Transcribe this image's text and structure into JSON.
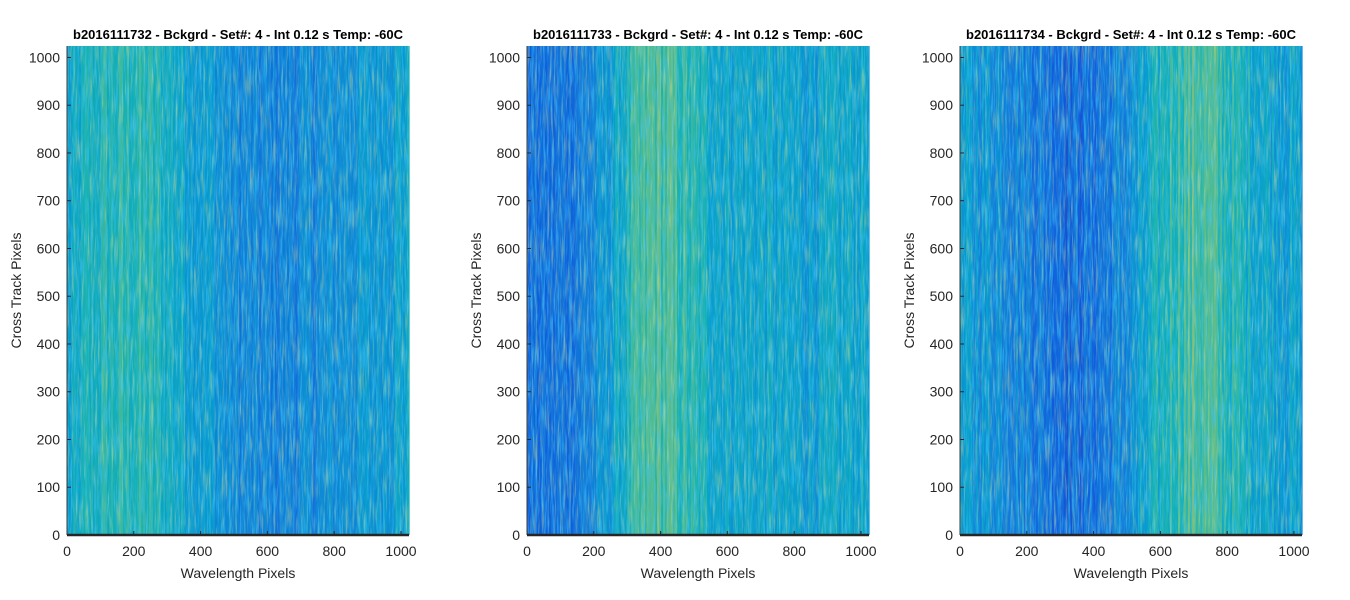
{
  "chart_data": [
    {
      "type": "heatmap",
      "title": "b2016111732 - Bckgrd - Set#: 4 - Int 0.12 s Temp: -60C",
      "xlabel": "Wavelength Pixels",
      "ylabel": "Cross Track Pixels",
      "xlim": [
        0,
        1024
      ],
      "ylim": [
        0,
        1024
      ],
      "xticks": [
        0,
        200,
        400,
        600,
        800,
        1000
      ],
      "yticks": [
        0,
        100,
        200,
        300,
        400,
        500,
        600,
        700,
        800,
        900,
        1000
      ],
      "colormap": "parula",
      "column_intensity_profile": {
        "x": [
          0,
          64,
          128,
          192,
          256,
          320,
          384,
          448,
          512,
          576,
          640,
          704,
          768,
          832,
          896,
          960,
          1024
        ],
        "level": [
          0.45,
          0.55,
          0.58,
          0.6,
          0.58,
          0.52,
          0.46,
          0.4,
          0.32,
          0.3,
          0.3,
          0.32,
          0.34,
          0.38,
          0.4,
          0.44,
          0.48
        ]
      }
    },
    {
      "type": "heatmap",
      "title": "b2016111733 - Bckgrd - Set#: 4 - Int 0.12 s Temp: -60C",
      "xlabel": "Wavelength Pixels",
      "ylabel": "Cross Track Pixels",
      "xlim": [
        0,
        1024
      ],
      "ylim": [
        0,
        1024
      ],
      "xticks": [
        0,
        200,
        400,
        600,
        800,
        1000
      ],
      "yticks": [
        0,
        100,
        200,
        300,
        400,
        500,
        600,
        700,
        800,
        900,
        1000
      ],
      "colormap": "parula",
      "column_intensity_profile": {
        "x": [
          0,
          64,
          128,
          192,
          256,
          320,
          384,
          448,
          512,
          576,
          640,
          704,
          768,
          832,
          896,
          960,
          1024
        ],
        "level": [
          0.22,
          0.2,
          0.24,
          0.3,
          0.45,
          0.6,
          0.68,
          0.64,
          0.56,
          0.5,
          0.48,
          0.48,
          0.46,
          0.45,
          0.46,
          0.48,
          0.5
        ]
      }
    },
    {
      "type": "heatmap",
      "title": "b2016111734 - Bckgrd - Set#: 4 - Int 0.12 s Temp: -60C",
      "xlabel": "Wavelength Pixels",
      "ylabel": "Cross Track Pixels",
      "xlim": [
        0,
        1024
      ],
      "ylim": [
        0,
        1024
      ],
      "xticks": [
        0,
        200,
        400,
        600,
        800,
        1000
      ],
      "yticks": [
        0,
        100,
        200,
        300,
        400,
        500,
        600,
        700,
        800,
        900,
        1000
      ],
      "colormap": "parula",
      "column_intensity_profile": {
        "x": [
          0,
          64,
          128,
          192,
          256,
          320,
          384,
          448,
          512,
          576,
          640,
          704,
          768,
          832,
          896,
          960,
          1024
        ],
        "level": [
          0.42,
          0.4,
          0.36,
          0.3,
          0.24,
          0.2,
          0.2,
          0.26,
          0.36,
          0.5,
          0.62,
          0.68,
          0.64,
          0.56,
          0.5,
          0.46,
          0.44
        ]
      }
    }
  ]
}
